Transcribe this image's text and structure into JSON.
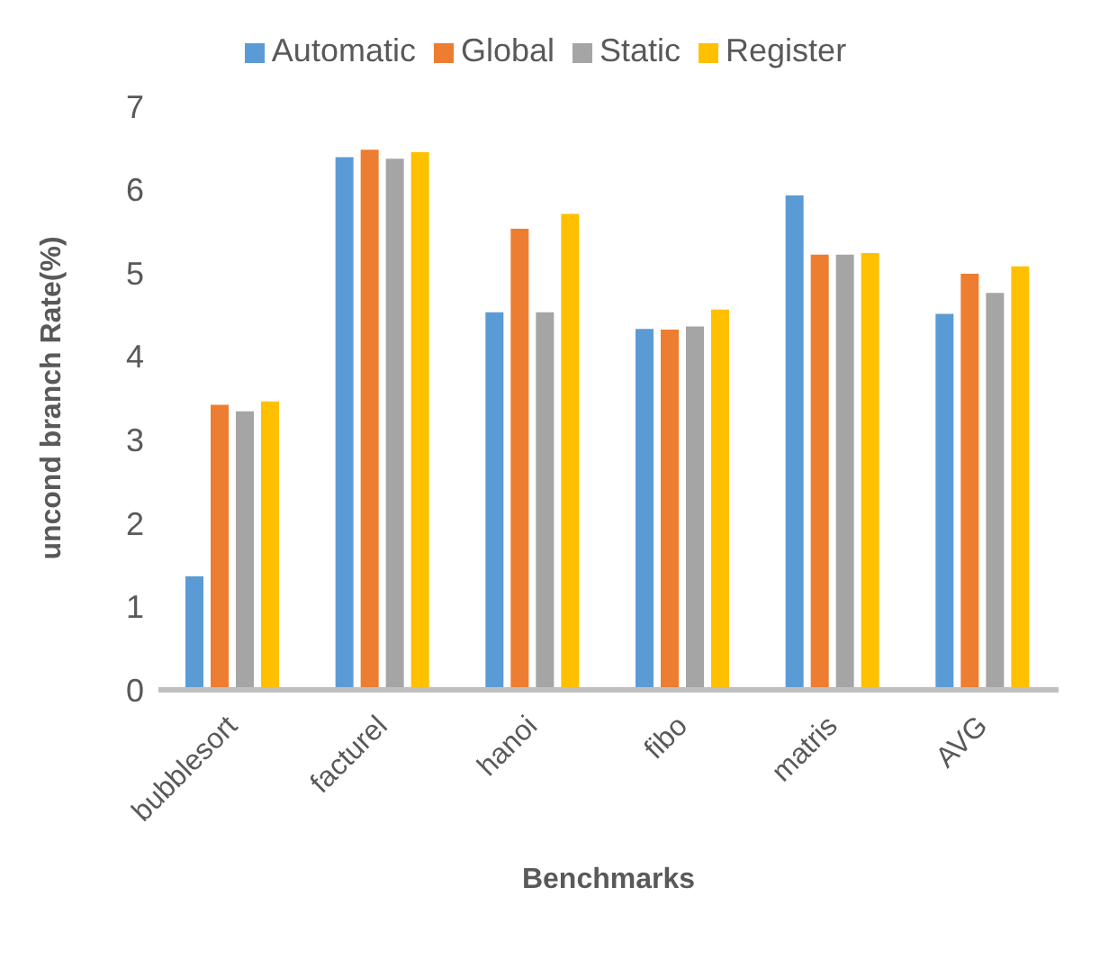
{
  "chart_data": {
    "type": "bar",
    "xlabel": "Benchmarks",
    "ylabel": "uncond branch Rate(%)",
    "categories": [
      "bubblesort",
      "facturel",
      "hanoi",
      "fibo",
      "matris",
      "AVG"
    ],
    "series": [
      {
        "name": "Automatic",
        "color": "#5b9bd5",
        "values": [
          1.36,
          6.39,
          4.53,
          4.33,
          5.93,
          4.51
        ]
      },
      {
        "name": "Global",
        "color": "#ed7d31",
        "values": [
          3.42,
          6.48,
          5.53,
          4.32,
          5.22,
          4.99
        ]
      },
      {
        "name": "Static",
        "color": "#a5a5a5",
        "values": [
          3.34,
          6.37,
          4.53,
          4.36,
          5.22,
          4.76
        ]
      },
      {
        "name": "Register",
        "color": "#ffc000",
        "values": [
          3.46,
          6.45,
          5.71,
          4.56,
          5.24,
          5.08
        ]
      }
    ],
    "ylim": [
      0,
      7
    ],
    "yticks": [
      0,
      1,
      2,
      3,
      4,
      5,
      6,
      7
    ],
    "grid": false,
    "legend": "top"
  }
}
